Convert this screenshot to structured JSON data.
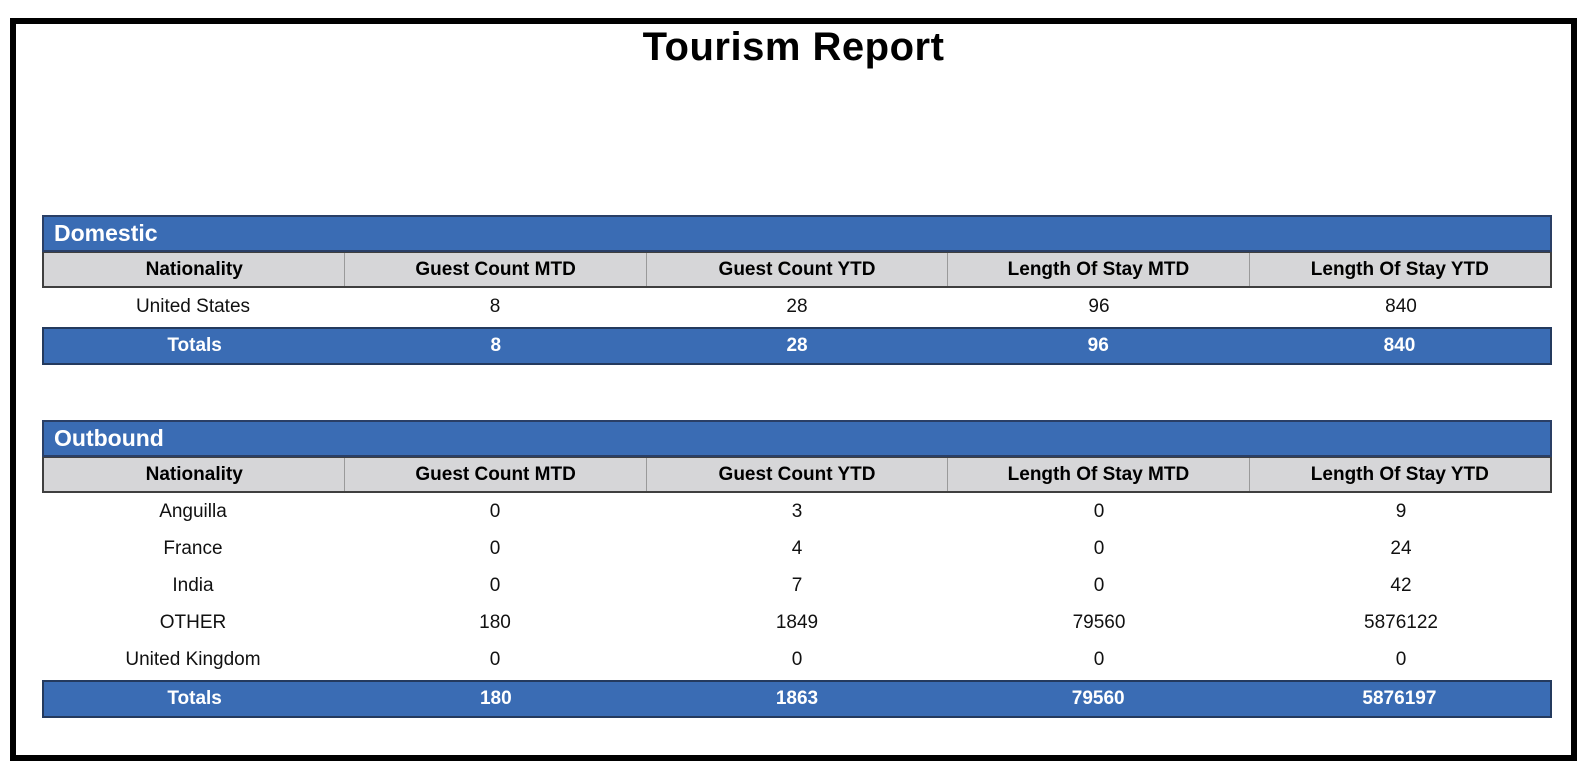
{
  "page": {
    "title": "Tourism Report"
  },
  "colors": {
    "header_blue": "#3A6CB4",
    "header_blue_border": "#2A3F66",
    "totals_border": "#243A5E",
    "column_header_gray": "#D6D6D8",
    "column_header_border": "#3F3F3F",
    "page_border": "#000000",
    "totals_text": "#FFFFFF",
    "body_text": "#111111"
  },
  "columns": [
    "Nationality",
    "Guest Count MTD",
    "Guest Count YTD",
    "Length Of Stay MTD",
    "Length Of Stay YTD"
  ],
  "domestic": {
    "section_title": "Domestic",
    "rows": [
      {
        "nationality": "United States",
        "gc_mtd": "8",
        "gc_ytd": "28",
        "los_mtd": "96",
        "los_ytd": "840"
      }
    ],
    "totals": {
      "label": "Totals",
      "gc_mtd": "8",
      "gc_ytd": "28",
      "los_mtd": "96",
      "los_ytd": "840"
    }
  },
  "outbound": {
    "section_title": "Outbound",
    "rows": [
      {
        "nationality": "Anguilla",
        "gc_mtd": "0",
        "gc_ytd": "3",
        "los_mtd": "0",
        "los_ytd": "9"
      },
      {
        "nationality": "France",
        "gc_mtd": "0",
        "gc_ytd": "4",
        "los_mtd": "0",
        "los_ytd": "24"
      },
      {
        "nationality": "India",
        "gc_mtd": "0",
        "gc_ytd": "7",
        "los_mtd": "0",
        "los_ytd": "42"
      },
      {
        "nationality": "OTHER",
        "gc_mtd": "180",
        "gc_ytd": "1849",
        "los_mtd": "79560",
        "los_ytd": "5876122"
      },
      {
        "nationality": "United Kingdom",
        "gc_mtd": "0",
        "gc_ytd": "0",
        "los_mtd": "0",
        "los_ytd": "0"
      }
    ],
    "totals": {
      "label": "Totals",
      "gc_mtd": "180",
      "gc_ytd": "1863",
      "los_mtd": "79560",
      "los_ytd": "5876197"
    }
  }
}
